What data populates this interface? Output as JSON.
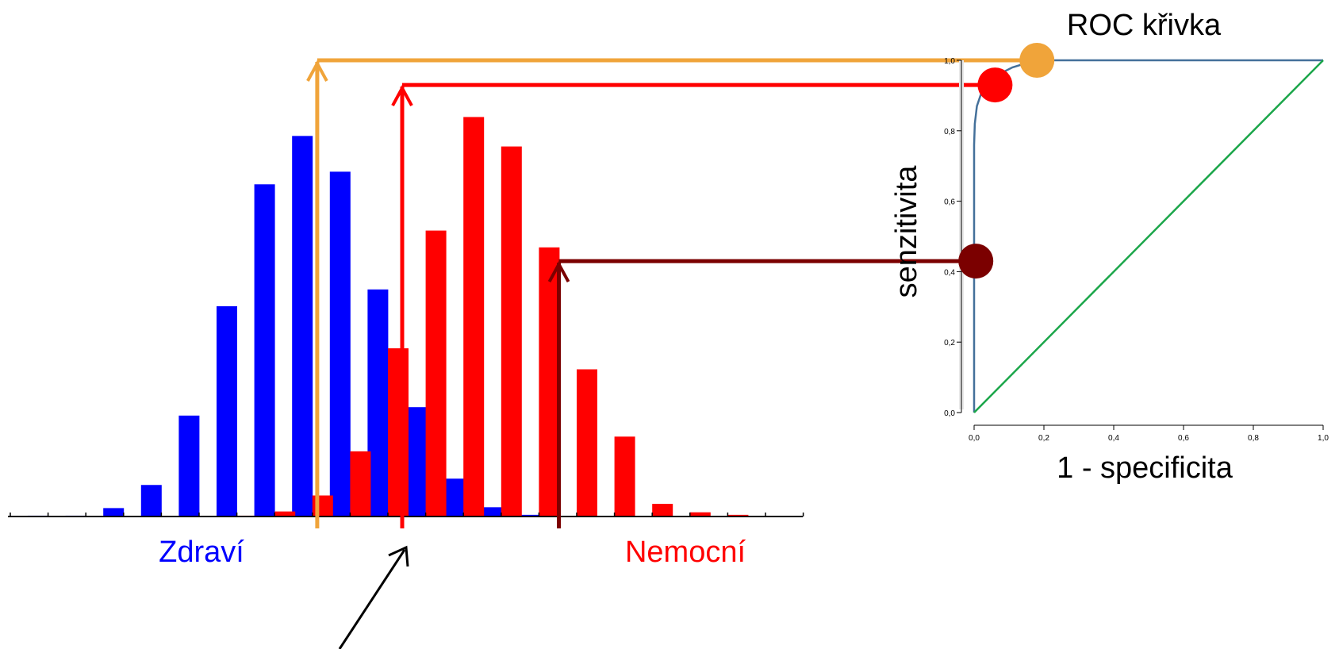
{
  "colors": {
    "healthy": "#0000ff",
    "sick": "#ff0000",
    "orange": "#f0a43a",
    "red": "#ff0000",
    "darkred": "#7b0000",
    "roc_curve": "#44709a",
    "diagonal": "#1ba64a",
    "axis": "#000000"
  },
  "histogram": {
    "label_healthy": "Zdraví",
    "label_sick": "Nemocní",
    "bins": 21,
    "healthy_values": [
      0.002,
      0.002,
      0.02,
      0.075,
      0.24,
      0.5,
      0.79,
      0.905,
      0.82,
      0.54,
      0.26,
      0.09,
      0.022,
      0.004,
      0,
      0,
      0,
      0,
      0,
      0,
      0
    ],
    "sick_values": [
      0,
      0,
      0,
      0,
      0,
      0,
      0.002,
      0.012,
      0.05,
      0.155,
      0.4,
      0.68,
      0.95,
      0.88,
      0.64,
      0.35,
      0.19,
      0.03,
      0.01,
      0.004,
      0
    ],
    "thresholds": [
      {
        "name": "orange",
        "bin": 7.75,
        "sensitivity": 1.0
      },
      {
        "name": "red",
        "bin": 10.0,
        "sensitivity": 0.93
      },
      {
        "name": "darkred",
        "bin": 14.15,
        "sensitivity": 0.43
      }
    ]
  },
  "chart_data": {
    "type": "line",
    "title": "ROC křivka",
    "xlabel": "1 - specificita",
    "ylabel": "senzitivita",
    "xlim": [
      0,
      1
    ],
    "ylim": [
      0,
      1
    ],
    "x_ticks": [
      "0,0",
      "0,2",
      "0,4",
      "0,6",
      "0,8",
      "1,0"
    ],
    "y_ticks": [
      "0,0",
      "0,2",
      "0,4",
      "0,6",
      "0,8",
      "1,0"
    ],
    "series": [
      {
        "x": [
          0,
          0,
          0.002,
          0.008,
          0.02,
          0.04,
          0.07,
          0.11,
          0.16,
          0.22,
          1.0
        ],
        "y": [
          0,
          0.76,
          0.82,
          0.87,
          0.905,
          0.935,
          0.96,
          0.98,
          0.995,
          1.0,
          1.0
        ]
      },
      {
        "x": [
          0,
          1
        ],
        "y": [
          0,
          1
        ]
      }
    ],
    "points": [
      {
        "name": "orange",
        "x": 0.18,
        "y": 1.0
      },
      {
        "name": "red",
        "x": 0.06,
        "y": 0.93
      },
      {
        "name": "darkred",
        "x": 0.005,
        "y": 0.43
      }
    ]
  }
}
